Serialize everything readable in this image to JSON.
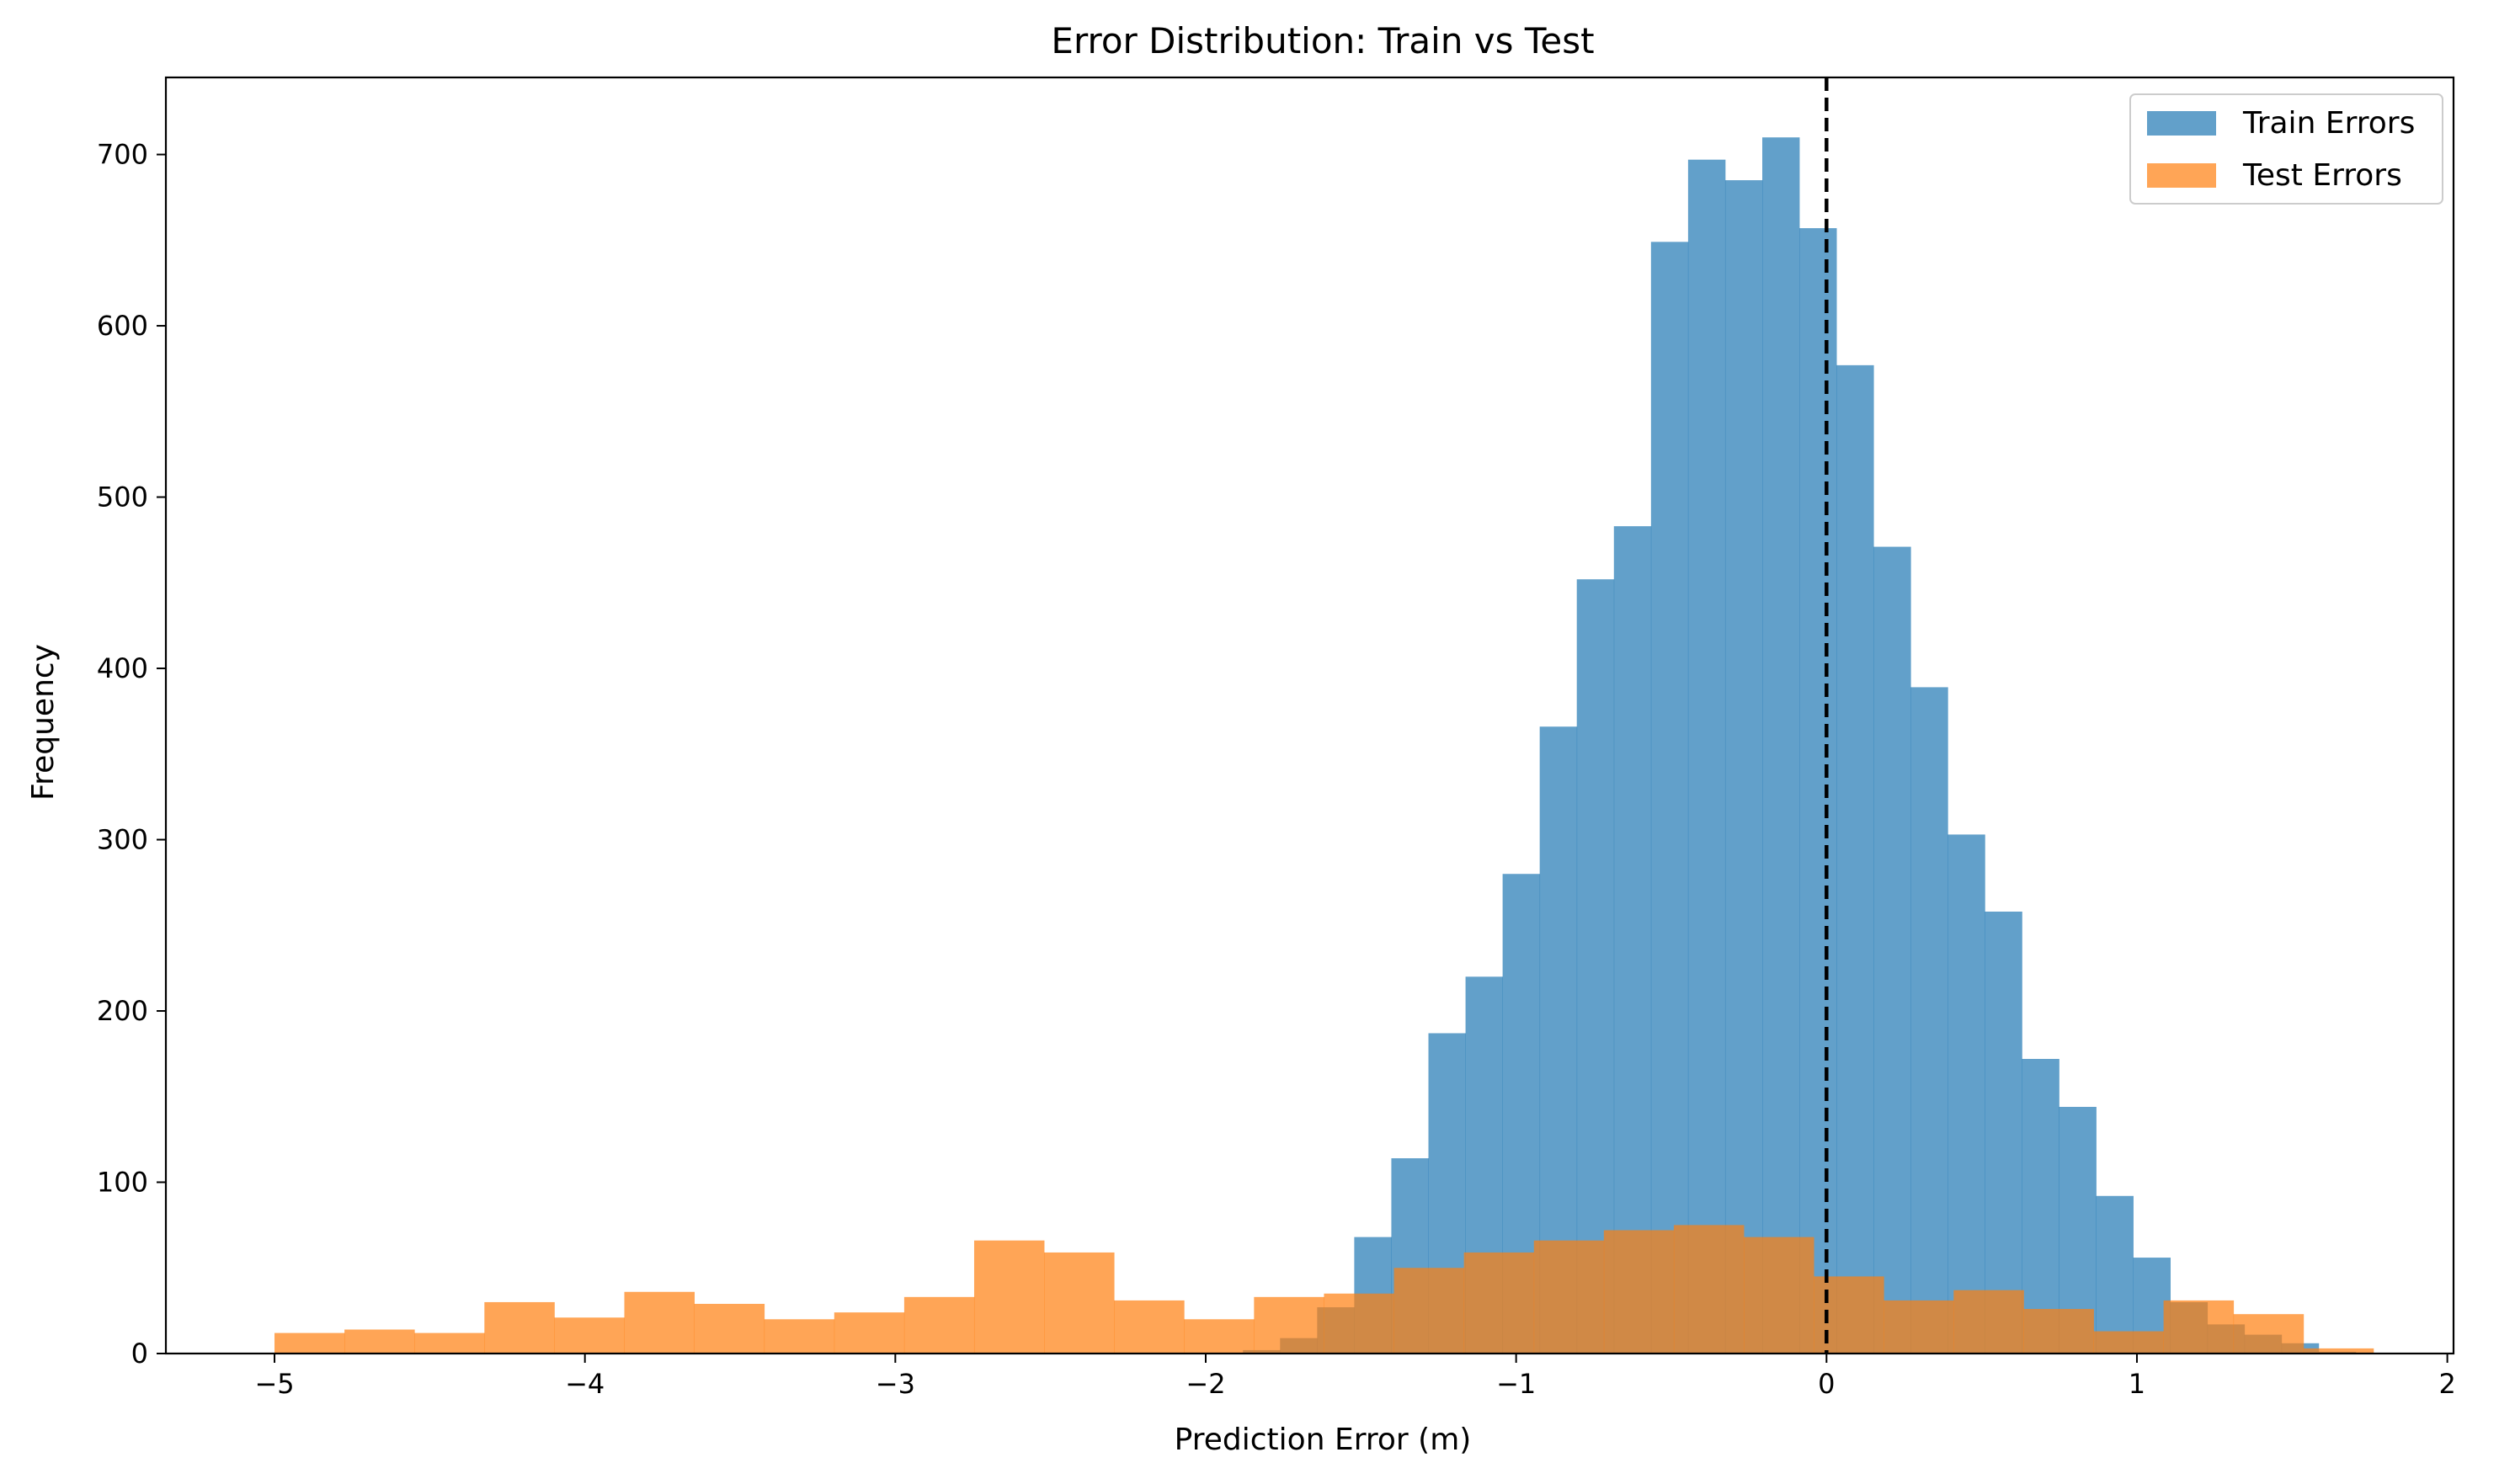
{
  "chart_data": {
    "type": "histogram",
    "title": "Error Distribution: Train vs Test",
    "xlabel": "Prediction Error (m)",
    "ylabel": "Frequency",
    "xlim": [
      -5.35,
      2.02
    ],
    "ylim": [
      0,
      745
    ],
    "xticks": [
      -5,
      -4,
      -3,
      -2,
      -1,
      0,
      1,
      2
    ],
    "xtick_labels": [
      "−5",
      "−4",
      "−3",
      "−2",
      "−1",
      "0",
      "1",
      "2"
    ],
    "yticks": [
      0,
      100,
      200,
      300,
      400,
      500,
      600,
      700
    ],
    "ytick_labels": [
      "0",
      "100",
      "200",
      "300",
      "400",
      "500",
      "600",
      "700"
    ],
    "grid": false,
    "legend_position": "top-right",
    "reference_line": {
      "x": 0,
      "style": "dashed",
      "color": "#000000"
    },
    "series": [
      {
        "name": "Train Errors",
        "color": "#1f77b4",
        "opacity": 0.7,
        "bin_start": -1.88,
        "bin_width": 0.1195,
        "values": [
          2,
          9,
          27,
          68,
          114,
          187,
          220,
          280,
          366,
          452,
          483,
          649,
          697,
          685,
          710,
          657,
          577,
          471,
          389,
          303,
          258,
          172,
          144,
          92,
          56,
          30,
          17,
          11,
          6,
          1
        ]
      },
      {
        "name": "Test Errors",
        "color": "#ff7f0e",
        "opacity": 0.7,
        "bin_start": -5.0,
        "bin_width": 0.2254,
        "values": [
          12,
          14,
          12,
          30,
          21,
          36,
          29,
          20,
          24,
          33,
          66,
          59,
          31,
          20,
          33,
          35,
          50,
          59,
          66,
          72,
          75,
          68,
          45,
          31,
          37,
          26,
          13,
          31,
          23,
          3
        ]
      }
    ]
  }
}
